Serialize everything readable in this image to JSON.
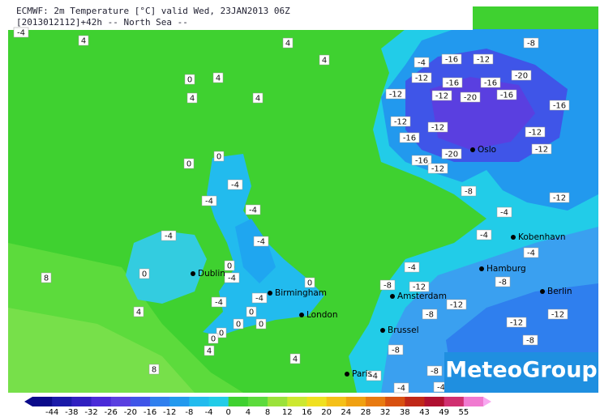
{
  "header": {
    "line1": "ECMWF: 2m Temperature [°C] valid Wed, 23JAN2013 06Z",
    "line2": "[2013012112]+42h -- North Sea --"
  },
  "cities": [
    "Oslo",
    "Kobenhavn",
    "Hamburg",
    "Berlin",
    "Amsterdam",
    "Brussel",
    "Paris",
    "London",
    "Birmingham",
    "Dublin"
  ],
  "map_labels": [
    "-4",
    "4",
    "4",
    "4",
    "0",
    "4",
    "4",
    "4",
    "-4",
    "-16",
    "-12",
    "-8",
    "-12",
    "-16",
    "-16",
    "-20",
    "-12",
    "-12",
    "-20",
    "-16",
    "-16",
    "-12",
    "-12",
    "-16",
    "-12",
    "-12",
    "-20",
    "-16",
    "-12",
    "0",
    "0",
    "-4",
    "-4",
    "-4",
    "-4",
    "-4",
    "-8",
    "-12",
    "-4",
    "-4",
    "-4",
    "0",
    "8",
    "0",
    "-4",
    "0",
    "-4",
    "-12",
    "-8",
    "-4",
    "-4",
    "-8",
    "-12",
    "-8",
    "4",
    "0",
    "0",
    "0",
    "0",
    "0",
    "-12",
    "-12",
    "-8",
    "-8",
    "4",
    "4",
    "8",
    "-4",
    "-8",
    "-4",
    "-4"
  ],
  "colorbar": [
    "-44",
    "-38",
    "-32",
    "-26",
    "-20",
    "-16",
    "-12",
    "-8",
    "-4",
    "0",
    "4",
    "8",
    "12",
    "16",
    "20",
    "24",
    "28",
    "32",
    "38",
    "43",
    "49",
    "55"
  ],
  "logo": "MeteoGroup"
}
